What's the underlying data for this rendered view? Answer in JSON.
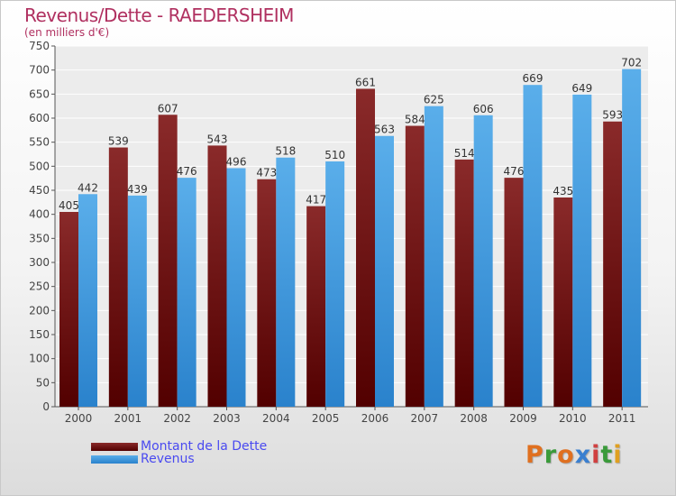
{
  "chart_data": {
    "type": "bar",
    "title": "Revenus/Dette - RAEDERSHEIM",
    "subtitle": "(en milliers d'€)",
    "categories": [
      "2000",
      "2001",
      "2002",
      "2003",
      "2004",
      "2005",
      "2006",
      "2007",
      "2008",
      "2009",
      "2010",
      "2011"
    ],
    "series": [
      {
        "name": "Montant de la Dette",
        "values": [
          405,
          539,
          607,
          543,
          473,
          417,
          661,
          584,
          514,
          476,
          435,
          593
        ],
        "color": "#7a1c1c"
      },
      {
        "name": "Revenus",
        "values": [
          442,
          439,
          476,
          496,
          518,
          510,
          563,
          625,
          606,
          669,
          649,
          702
        ],
        "color": "#4aa3e6"
      }
    ],
    "ylim": [
      0,
      750
    ],
    "yticks": [
      0,
      50,
      100,
      150,
      200,
      250,
      300,
      350,
      400,
      450,
      500,
      550,
      600,
      650,
      700,
      750
    ],
    "grid": true,
    "legend_position": "bottom-left"
  },
  "logo": {
    "letters": [
      "P",
      "r",
      "o",
      "x",
      "i",
      "t",
      "i"
    ],
    "colors": [
      "#e07020",
      "#3a9a3a",
      "#e07020",
      "#3a7fd0",
      "#d04040",
      "#3a9a3a",
      "#e0a020"
    ]
  }
}
